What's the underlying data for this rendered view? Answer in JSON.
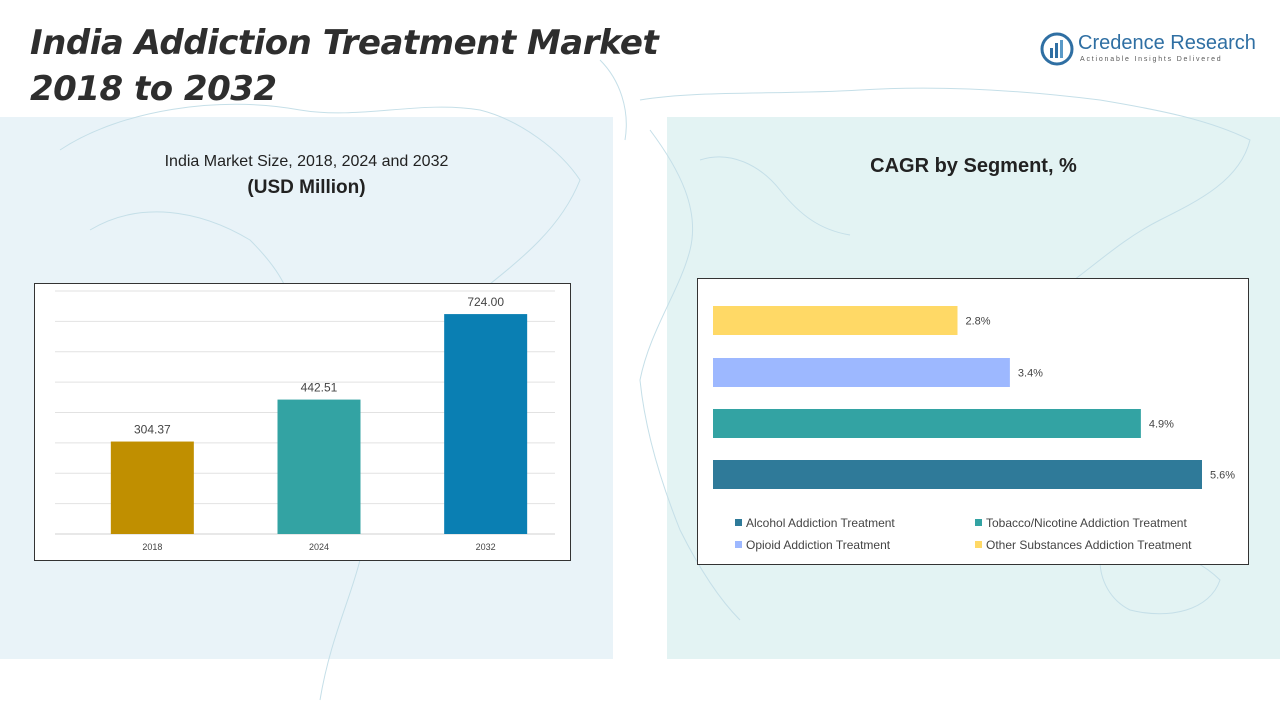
{
  "header": {
    "title_line1": "India Addiction Treatment Market",
    "title_line2": "2018 to 2032"
  },
  "logo": {
    "name": "Credence Research",
    "tagline": "Actionable Insights Delivered",
    "icon": "bar-chart-circle-icon"
  },
  "left_panel": {
    "subtitle": "India Market Size, 2018, 2024 and 2032",
    "unit": "(USD Million)"
  },
  "right_panel": {
    "title": "CAGR by Segment, %"
  },
  "chart_data": [
    {
      "type": "bar",
      "title": "India Market Size, 2018, 2024 and 2032",
      "ylabel": "USD Million",
      "categories": [
        "2018",
        "2024",
        "2032"
      ],
      "values": [
        304.37,
        442.51,
        724.0
      ],
      "value_labels": [
        "304.37",
        "442.51",
        "724.00"
      ],
      "colors": [
        "#c08f00",
        "#33a3a3",
        "#0a7fb3"
      ],
      "ylim": [
        0,
        800
      ],
      "grid": true
    },
    {
      "type": "bar",
      "orientation": "horizontal",
      "title": "CAGR by Segment, %",
      "categories": [
        "Alcohol Addiction Treatment",
        "Tobacco/Nicotine Addiction Treatment",
        "Opioid Addiction Treatment",
        "Other Substances Addiction Treatment"
      ],
      "values": [
        5.6,
        4.9,
        3.4,
        2.8
      ],
      "value_labels": [
        "5.6%",
        "4.9%",
        "3.4%",
        "2.8%"
      ],
      "colors": [
        "#2f7a99",
        "#33a3a3",
        "#9db8ff",
        "#ffd966"
      ],
      "xlim": [
        0,
        5.6
      ],
      "legend_position": "bottom"
    }
  ]
}
